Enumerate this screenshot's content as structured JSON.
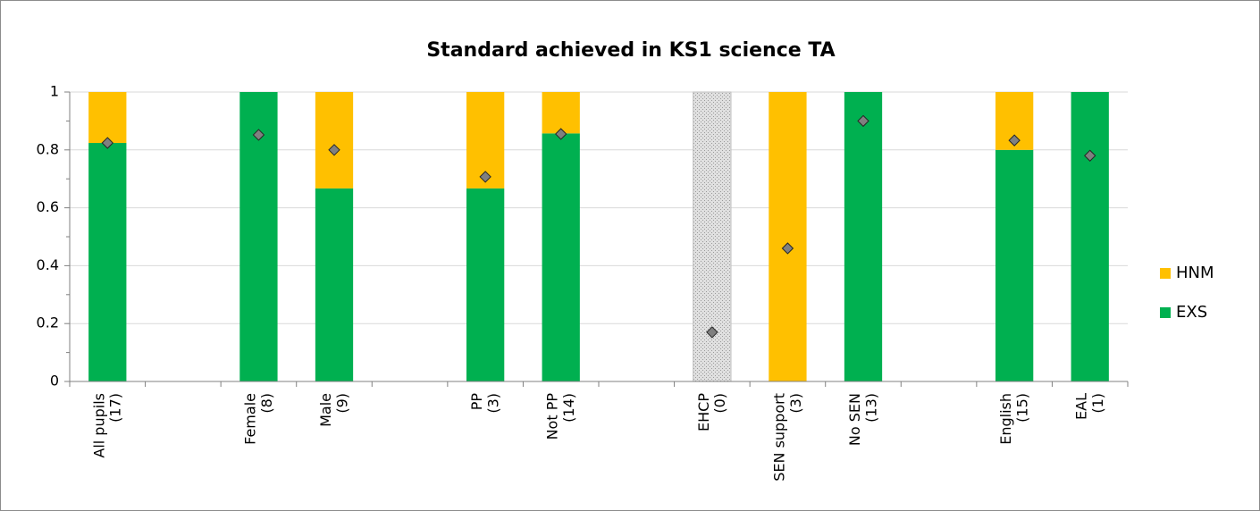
{
  "chart_data": {
    "type": "stacked_bar",
    "title": "Standard achieved in KS1 science TA",
    "categories": [
      [
        "All pupils",
        "(17)"
      ],
      null,
      [
        "Female",
        "(8)"
      ],
      [
        "Male",
        "(9)"
      ],
      null,
      [
        "PP",
        "(3)"
      ],
      [
        "Not PP",
        "(14)"
      ],
      null,
      [
        "EHCP",
        "(0)"
      ],
      [
        "SEN support",
        "(3)"
      ],
      [
        "No SEN",
        "(13)"
      ],
      null,
      [
        "English",
        "(15)"
      ],
      [
        "EAL",
        "(1)"
      ]
    ],
    "series": [
      {
        "name": "EXS",
        "color": "#00b050",
        "values": [
          0.824,
          null,
          1,
          0.667,
          null,
          0.667,
          0.857,
          null,
          null,
          0,
          1,
          null,
          0.8,
          1
        ]
      },
      {
        "name": "HNM",
        "color": "#ffc000",
        "values": [
          0.176,
          null,
          0,
          0.333,
          null,
          0.333,
          0.143,
          null,
          null,
          1,
          0,
          null,
          0.2,
          0
        ]
      },
      {
        "type": "marker",
        "color": "#808080",
        "values": [
          0.824,
          null,
          0.852,
          0.8,
          null,
          0.707,
          0.855,
          null,
          0.17,
          0.46,
          0.9,
          null,
          0.833,
          0.78
        ]
      }
    ],
    "ylim": [
      0,
      1
    ],
    "yticks": [
      0,
      0.2,
      0.4,
      0.6,
      0.8,
      1
    ],
    "grid": true,
    "legend": "right"
  }
}
